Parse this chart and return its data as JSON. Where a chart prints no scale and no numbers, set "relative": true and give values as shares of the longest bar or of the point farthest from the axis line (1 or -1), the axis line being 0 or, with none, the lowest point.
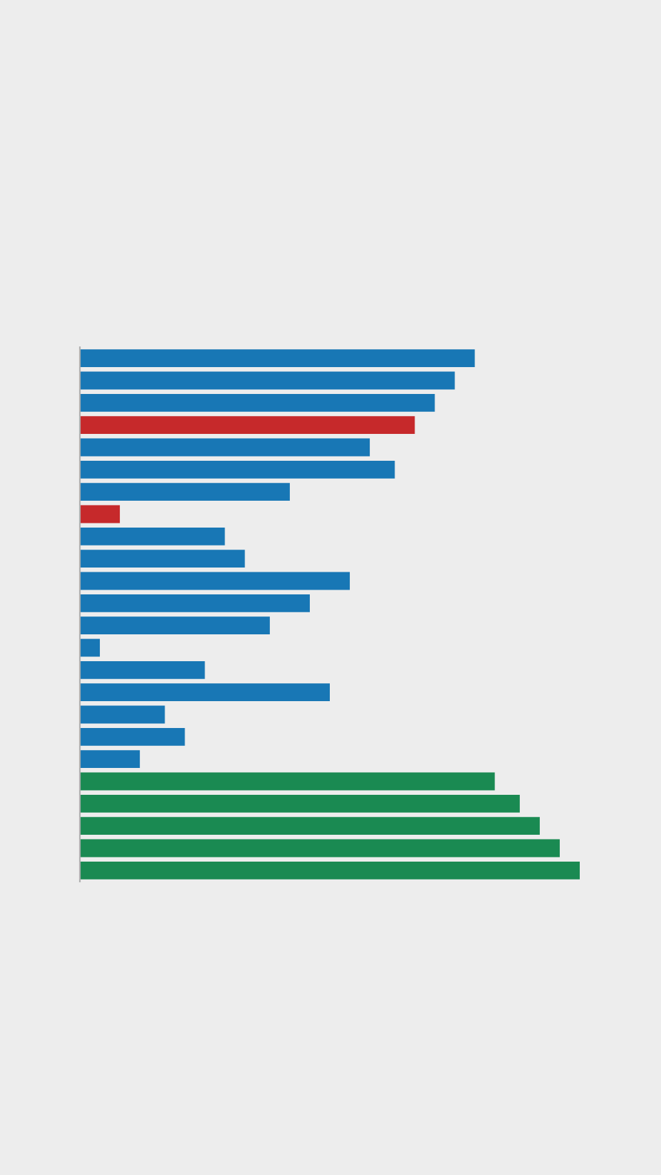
{
  "chart_data": {
    "type": "bar",
    "orientation": "horizontal",
    "relative": true,
    "categories": [
      null,
      null,
      null,
      null,
      null,
      null,
      null,
      null,
      null,
      null,
      null,
      null,
      null,
      null,
      null,
      null,
      null,
      null,
      null,
      null,
      null,
      null,
      null,
      null
    ],
    "values": [
      0.79,
      0.75,
      0.71,
      0.67,
      0.58,
      0.63,
      0.42,
      0.08,
      0.29,
      0.33,
      0.54,
      0.46,
      0.38,
      0.04,
      0.25,
      0.5,
      0.17,
      0.21,
      0.12,
      0.83,
      0.88,
      0.92,
      0.96,
      1
    ],
    "colors": [
      "#1877b5",
      "#1877b5",
      "#1877b5",
      "#c6292b",
      "#1877b5",
      "#1877b5",
      "#1877b5",
      "#c6292b",
      "#1877b5",
      "#1877b5",
      "#1877b5",
      "#1877b5",
      "#1877b5",
      "#1877b5",
      "#1877b5",
      "#1877b5",
      "#1877b5",
      "#1877b5",
      "#1877b5",
      "#1a8a52",
      "#1a8a52",
      "#1a8a52",
      "#1a8a52",
      "#1a8a52"
    ]
  }
}
